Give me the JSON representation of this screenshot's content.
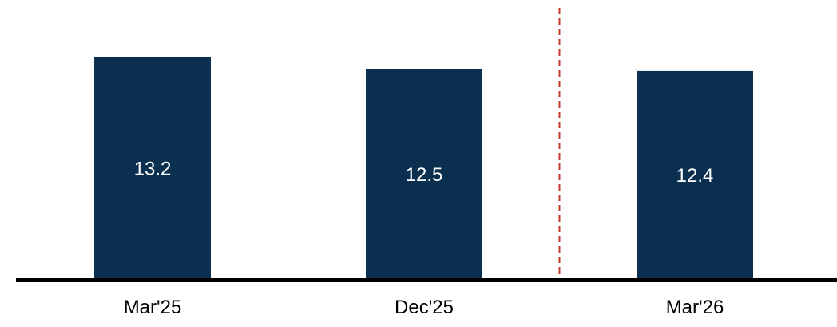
{
  "chart_data": {
    "type": "bar",
    "categories": [
      "Mar'25",
      "Dec'25",
      "Mar'26"
    ],
    "values": [
      13.2,
      12.5,
      12.4
    ],
    "data_labels": [
      "13.2",
      "12.5",
      "12.4"
    ],
    "title": "",
    "xlabel": "",
    "ylabel": "",
    "ylim": [
      0,
      13.2
    ],
    "grid": false,
    "legend": "none",
    "bar_color": "#0a2f4f",
    "axis_color": "#000000",
    "divider": {
      "between_categories": [
        1,
        2
      ],
      "style": "dashed",
      "color": "#c0392b"
    }
  }
}
